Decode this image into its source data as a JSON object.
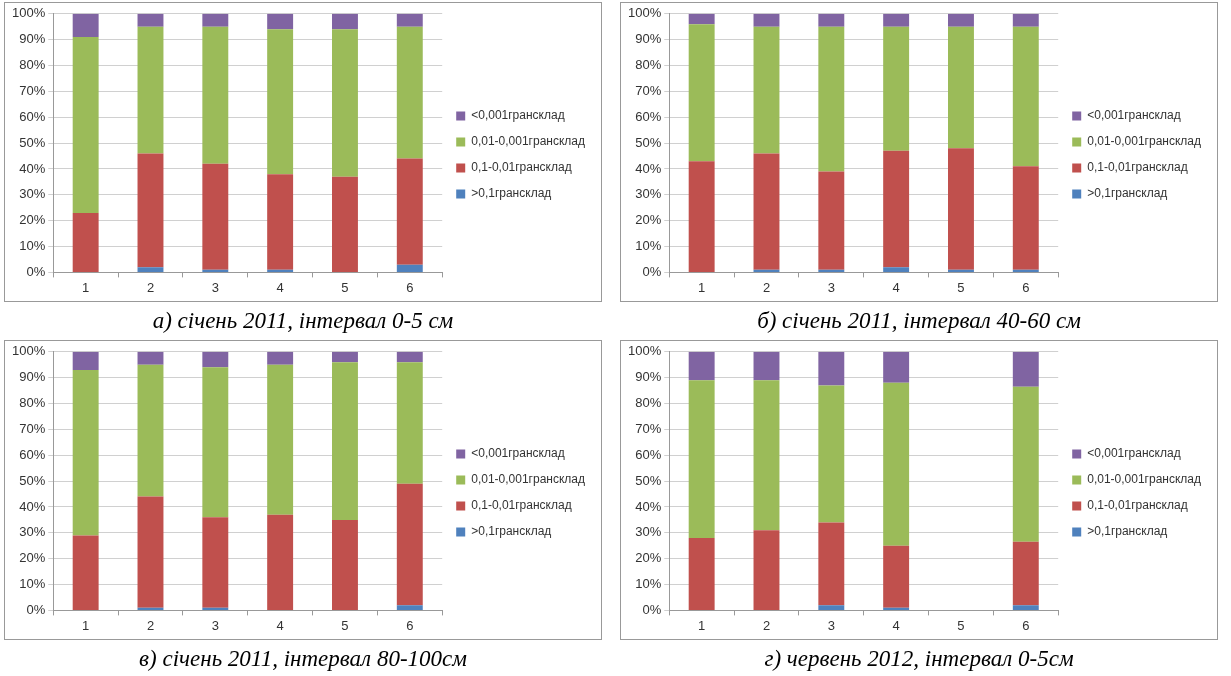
{
  "chart_data": [
    {
      "type": "bar",
      "title": "а) січень 2011, інтервал 0-5 см",
      "categories": [
        "1",
        "2",
        "3",
        "4",
        "5",
        "6"
      ],
      "stacked": true,
      "ylim": [
        0,
        100
      ],
      "yticks": [
        {
          "value": 0,
          "label": "0%"
        },
        {
          "value": 10,
          "label": "10%"
        },
        {
          "value": 20,
          "label": "20%"
        },
        {
          "value": 30,
          "label": "30%"
        },
        {
          "value": 40,
          "label": "40%"
        },
        {
          "value": 50,
          "label": "50%"
        },
        {
          "value": 60,
          "label": "60%"
        },
        {
          "value": 70,
          "label": "70%"
        },
        {
          "value": 80,
          "label": "80%"
        },
        {
          "value": 90,
          "label": "90%"
        },
        {
          "value": 100,
          "label": "100%"
        }
      ],
      "grid": "y",
      "legend": "right",
      "series": [
        {
          "name": ">0,1грансклад",
          "color": "#4f81bd",
          "values": [
            0,
            2,
            1,
            1,
            0,
            3
          ]
        },
        {
          "name": "0,1-0,01грансклад",
          "color": "#c0504d",
          "values": [
            23,
            44,
            41,
            37,
            37,
            41
          ]
        },
        {
          "name": "0,01-0,001грансклад",
          "color": "#9bbb59",
          "values": [
            68,
            49,
            53,
            56,
            57,
            51
          ]
        },
        {
          "name": "<0,001грансклад",
          "color": "#8064a2",
          "values": [
            9,
            5,
            5,
            6,
            6,
            5
          ]
        }
      ]
    },
    {
      "type": "bar",
      "title": "б) січень 2011, інтервал 40-60 см",
      "categories": [
        "1",
        "2",
        "3",
        "4",
        "5",
        "6"
      ],
      "stacked": true,
      "ylim": [
        0,
        100
      ],
      "yticks": [
        {
          "value": 0,
          "label": "0%"
        },
        {
          "value": 10,
          "label": "10%"
        },
        {
          "value": 20,
          "label": "20%"
        },
        {
          "value": 30,
          "label": "30%"
        },
        {
          "value": 40,
          "label": "40%"
        },
        {
          "value": 50,
          "label": "50%"
        },
        {
          "value": 60,
          "label": "60%"
        },
        {
          "value": 70,
          "label": "70%"
        },
        {
          "value": 80,
          "label": "80%"
        },
        {
          "value": 90,
          "label": "90%"
        },
        {
          "value": 100,
          "label": "100%"
        }
      ],
      "grid": "y",
      "legend": "right",
      "series": [
        {
          "name": ">0,1грансклад",
          "color": "#4f81bd",
          "values": [
            0,
            1,
            1,
            2,
            1,
            1
          ]
        },
        {
          "name": "0,1-0,01грансклад",
          "color": "#c0504d",
          "values": [
            43,
            45,
            38,
            45,
            47,
            40
          ]
        },
        {
          "name": "0,01-0,001грансклад",
          "color": "#9bbb59",
          "values": [
            53,
            49,
            56,
            48,
            47,
            54
          ]
        },
        {
          "name": "<0,001грансклад",
          "color": "#8064a2",
          "values": [
            4,
            5,
            5,
            5,
            5,
            5
          ]
        }
      ]
    },
    {
      "type": "bar",
      "title": "в) січень 2011, інтервал 80-100см",
      "categories": [
        "1",
        "2",
        "3",
        "4",
        "5",
        "6"
      ],
      "stacked": true,
      "ylim": [
        0,
        100
      ],
      "yticks": [
        {
          "value": 0,
          "label": "0%"
        },
        {
          "value": 10,
          "label": "10%"
        },
        {
          "value": 20,
          "label": "20%"
        },
        {
          "value": 30,
          "label": "30%"
        },
        {
          "value": 40,
          "label": "40%"
        },
        {
          "value": 50,
          "label": "50%"
        },
        {
          "value": 60,
          "label": "60%"
        },
        {
          "value": 70,
          "label": "70%"
        },
        {
          "value": 80,
          "label": "80%"
        },
        {
          "value": 90,
          "label": "90%"
        },
        {
          "value": 100,
          "label": "100%"
        }
      ],
      "grid": "y",
      "legend": "right",
      "series": [
        {
          "name": ">0,1грансклад",
          "color": "#4f81bd",
          "values": [
            0,
            1,
            1,
            0,
            0,
            2
          ]
        },
        {
          "name": "0,1-0,01грансклад",
          "color": "#c0504d",
          "values": [
            29,
            43,
            35,
            37,
            35,
            47
          ]
        },
        {
          "name": "0,01-0,001грансклад",
          "color": "#9bbb59",
          "values": [
            64,
            51,
            58,
            58,
            61,
            47
          ]
        },
        {
          "name": "<0,001грансклад",
          "color": "#8064a2",
          "values": [
            7,
            5,
            6,
            5,
            4,
            4
          ]
        }
      ]
    },
    {
      "type": "bar",
      "title": "г) червень 2012, інтервал 0-5см",
      "categories": [
        "1",
        "2",
        "3",
        "4",
        "5",
        "6"
      ],
      "stacked": true,
      "ylim": [
        0,
        100
      ],
      "yticks": [
        {
          "value": 0,
          "label": "0%"
        },
        {
          "value": 10,
          "label": "10%"
        },
        {
          "value": 20,
          "label": "20%"
        },
        {
          "value": 30,
          "label": "30%"
        },
        {
          "value": 40,
          "label": "40%"
        },
        {
          "value": 50,
          "label": "50%"
        },
        {
          "value": 60,
          "label": "60%"
        },
        {
          "value": 70,
          "label": "70%"
        },
        {
          "value": 80,
          "label": "80%"
        },
        {
          "value": 90,
          "label": "90%"
        },
        {
          "value": 100,
          "label": "100%"
        }
      ],
      "grid": "y",
      "legend": "right",
      "series": [
        {
          "name": ">0,1грансклад",
          "color": "#4f81bd",
          "values": [
            0,
            0,
            2,
            1,
            null,
            2
          ]
        },
        {
          "name": "0,1-0,01грансклад",
          "color": "#c0504d",
          "values": [
            28,
            31,
            32,
            24,
            null,
            24.5
          ]
        },
        {
          "name": "0,01-0,001грансклад",
          "color": "#9bbb59",
          "values": [
            61,
            58,
            53,
            63,
            null,
            60
          ]
        },
        {
          "name": "<0,001грансклад",
          "color": "#8064a2",
          "values": [
            11,
            11,
            13,
            12,
            null,
            13.5
          ]
        }
      ]
    }
  ]
}
